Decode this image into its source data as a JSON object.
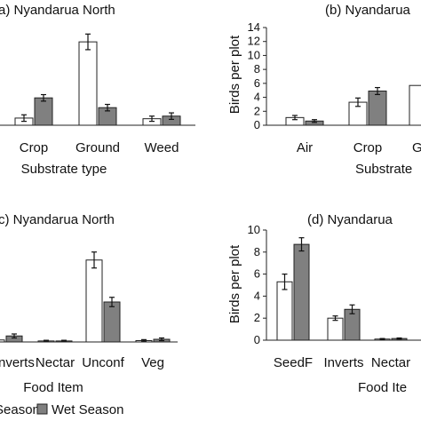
{
  "legend": {
    "items": [
      "Season",
      "Wet Season"
    ],
    "colors": [
      "#ffffff",
      "#808080"
    ]
  },
  "colors": {
    "dry": "#ffffff",
    "wet": "#808080",
    "axis": "#222222"
  },
  "chart_data": [
    {
      "type": "bar",
      "title": "a) Nyandarua North",
      "xlabel": "Substrate type",
      "ylabel": "",
      "categories": [
        "Crop",
        "Ground",
        "Weed"
      ],
      "ylim": [
        0,
        15
      ],
      "series": [
        {
          "name": "Season",
          "values": [
            1.1,
            12.8,
            1.0
          ],
          "errors": [
            0.5,
            1.2,
            0.4
          ]
        },
        {
          "name": "Wet Season",
          "values": [
            4.2,
            2.7,
            1.4
          ],
          "errors": [
            0.5,
            0.5,
            0.5
          ]
        }
      ]
    },
    {
      "type": "bar",
      "title": "(b) Nyandarua",
      "xlabel": "Substrate",
      "ylabel": "Birds per plot",
      "categories": [
        "Air",
        "Crop",
        "G"
      ],
      "ylim": [
        0,
        14
      ],
      "yticks": [
        0,
        2,
        4,
        6,
        8,
        10,
        12,
        14
      ],
      "series": [
        {
          "name": "Season",
          "values": [
            1.1,
            3.3,
            5.7
          ],
          "errors": [
            0.3,
            0.6,
            0
          ]
        },
        {
          "name": "Wet Season",
          "values": [
            0.6,
            4.9,
            null
          ],
          "errors": [
            0.2,
            0.5,
            0
          ]
        }
      ]
    },
    {
      "type": "bar",
      "title": "c) Nyandarua North",
      "xlabel": "Food Item",
      "ylabel": "",
      "categories": [
        "nverts",
        "Nectar",
        "Unconf",
        "Veg"
      ],
      "ylim": [
        0,
        16
      ],
      "series": [
        {
          "name": "Season",
          "values": [
            0.3,
            0.15,
            12.3,
            0.2
          ],
          "errors": [
            0.2,
            0.1,
            1.2,
            0.15
          ]
        },
        {
          "name": "Wet Season",
          "values": [
            0.9,
            0.15,
            6.0,
            0.4
          ],
          "errors": [
            0.3,
            0.1,
            0.7,
            0.2
          ]
        }
      ]
    },
    {
      "type": "bar",
      "title": "(d) Nyandarua",
      "xlabel": "Food Ite",
      "ylabel": "Birds per plot",
      "categories": [
        "SeedF",
        "Inverts",
        "Nectar"
      ],
      "ylim": [
        0,
        10
      ],
      "yticks": [
        0,
        2,
        4,
        6,
        8,
        10
      ],
      "series": [
        {
          "name": "Season",
          "values": [
            5.3,
            2.0,
            0.1
          ],
          "errors": [
            0.7,
            0.2,
            0.05
          ]
        },
        {
          "name": "Wet Season",
          "values": [
            8.7,
            2.8,
            0.15
          ],
          "errors": [
            0.6,
            0.4,
            0.05
          ]
        }
      ]
    }
  ]
}
